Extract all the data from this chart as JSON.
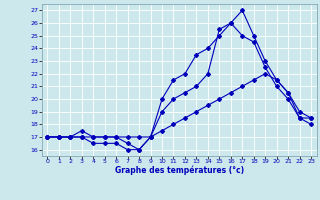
{
  "xlabel": "Graphe des températures (°c)",
  "xlim": [
    -0.5,
    23.5
  ],
  "ylim": [
    15.5,
    27.5
  ],
  "yticks": [
    16,
    17,
    18,
    19,
    20,
    21,
    22,
    23,
    24,
    25,
    26,
    27
  ],
  "xticks": [
    0,
    1,
    2,
    3,
    4,
    5,
    6,
    7,
    8,
    9,
    10,
    11,
    12,
    13,
    14,
    15,
    16,
    17,
    18,
    19,
    20,
    21,
    22,
    23
  ],
  "line_color": "#0000bb",
  "bg_color": "#cce8ec",
  "grid_color": "#ffffff",
  "line1_x": [
    0,
    1,
    2,
    3,
    4,
    5,
    6,
    7,
    8,
    9,
    10,
    11,
    12,
    13,
    14,
    15,
    16,
    17,
    18,
    19,
    20,
    21,
    22,
    23
  ],
  "line1_y": [
    17,
    17,
    17,
    17.5,
    17,
    17,
    17,
    16.5,
    16,
    17,
    20,
    21.5,
    22,
    23.5,
    24,
    25,
    26,
    27,
    25,
    23,
    21.5,
    20.5,
    18.5,
    18.5
  ],
  "line2_x": [
    0,
    1,
    2,
    3,
    4,
    5,
    6,
    7,
    8,
    9,
    10,
    11,
    12,
    13,
    14,
    15,
    16,
    17,
    18,
    19,
    20,
    21,
    22,
    23
  ],
  "line2_y": [
    17,
    17,
    17,
    17,
    16.5,
    16.5,
    16.5,
    16,
    16,
    17,
    19,
    20,
    20.5,
    21,
    22,
    25.5,
    26,
    25,
    24.5,
    22.5,
    21,
    20,
    18.5,
    18
  ],
  "line3_x": [
    0,
    1,
    2,
    3,
    4,
    5,
    6,
    7,
    8,
    9,
    10,
    11,
    12,
    13,
    14,
    15,
    16,
    17,
    18,
    19,
    20,
    21,
    22,
    23
  ],
  "line3_y": [
    17,
    17,
    17,
    17,
    17,
    17,
    17,
    17,
    17,
    17,
    17.5,
    18,
    18.5,
    19,
    19.5,
    20,
    20.5,
    21,
    21.5,
    22,
    21.5,
    20.5,
    19,
    18.5
  ]
}
